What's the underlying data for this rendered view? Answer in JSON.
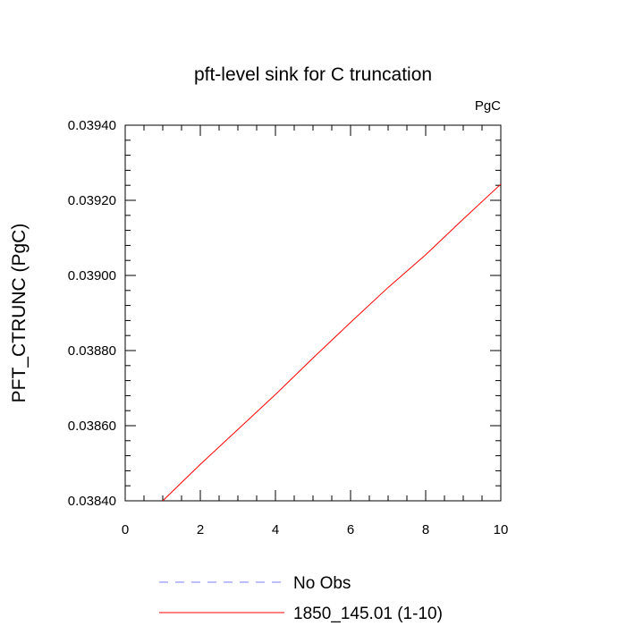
{
  "chart_data": {
    "type": "line",
    "title": "pft-level sink for C truncation",
    "units_label": "PgC",
    "xlabel": "",
    "ylabel": "PFT_CTRUNC  (PgC)",
    "xlim": [
      0,
      10
    ],
    "ylim": [
      0.0384,
      0.0394
    ],
    "x_ticks": [
      "0",
      "2",
      "4",
      "6",
      "8",
      "10"
    ],
    "y_ticks": [
      "0.03840",
      "0.03860",
      "0.03880",
      "0.03900",
      "0.03920",
      "0.03940"
    ],
    "grid": false,
    "legend_placement": "bottom",
    "series": [
      {
        "name": "No Obs",
        "color": "#7b7bff",
        "dash": "dashed",
        "x": [],
        "y": []
      },
      {
        "name": "1850_145.01 (1-10)",
        "color": "#ff0000",
        "dash": "solid",
        "x": [
          1,
          2,
          3,
          4,
          5,
          6,
          7,
          8,
          9,
          10
        ],
        "y": [
          0.0384,
          0.038497,
          0.03859,
          0.038683,
          0.03878,
          0.038875,
          0.038968,
          0.039055,
          0.03915,
          0.039243
        ]
      }
    ]
  }
}
